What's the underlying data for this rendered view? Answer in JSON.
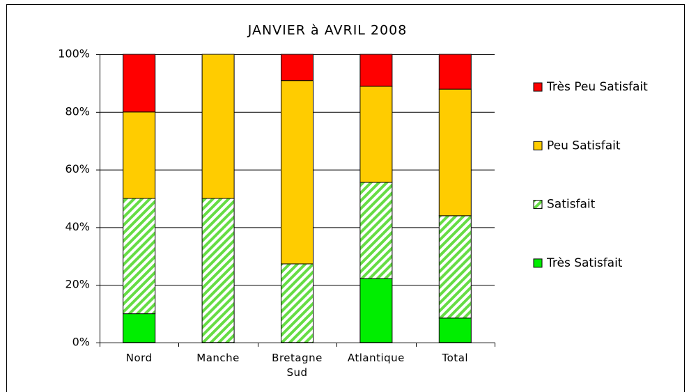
{
  "chart_data": {
    "type": "stacked_bar",
    "title": "JANVIER à AVRIL 2008",
    "categories": [
      "Nord",
      "Manche",
      "Bretagne Sud",
      "Atlantique",
      "Total"
    ],
    "series": [
      {
        "name": "Très Satisfait",
        "color": "#00ee00",
        "values": [
          10,
          0,
          0,
          22.2,
          8.5
        ]
      },
      {
        "name": "Satisfait",
        "color": "#66dd44",
        "pattern": "hatch",
        "values": [
          40,
          50,
          27.3,
          33.4,
          35.5
        ]
      },
      {
        "name": "Peu Satisfait",
        "color": "#ffcc00",
        "values": [
          30,
          50,
          63.6,
          33.3,
          43.9
        ]
      },
      {
        "name": "Très Peu Satisfait",
        "color": "#ff0000",
        "values": [
          20,
          0,
          9.1,
          11.1,
          12.1
        ]
      }
    ],
    "ylim": [
      0,
      100
    ],
    "yticks": [
      {
        "value": 0,
        "label": "0%"
      },
      {
        "value": 20,
        "label": "20%"
      },
      {
        "value": 40,
        "label": "40%"
      },
      {
        "value": 60,
        "label": "60%"
      },
      {
        "value": 80,
        "label": "80%"
      },
      {
        "value": 100,
        "label": "100%"
      }
    ],
    "grid": true,
    "legend": "right"
  }
}
